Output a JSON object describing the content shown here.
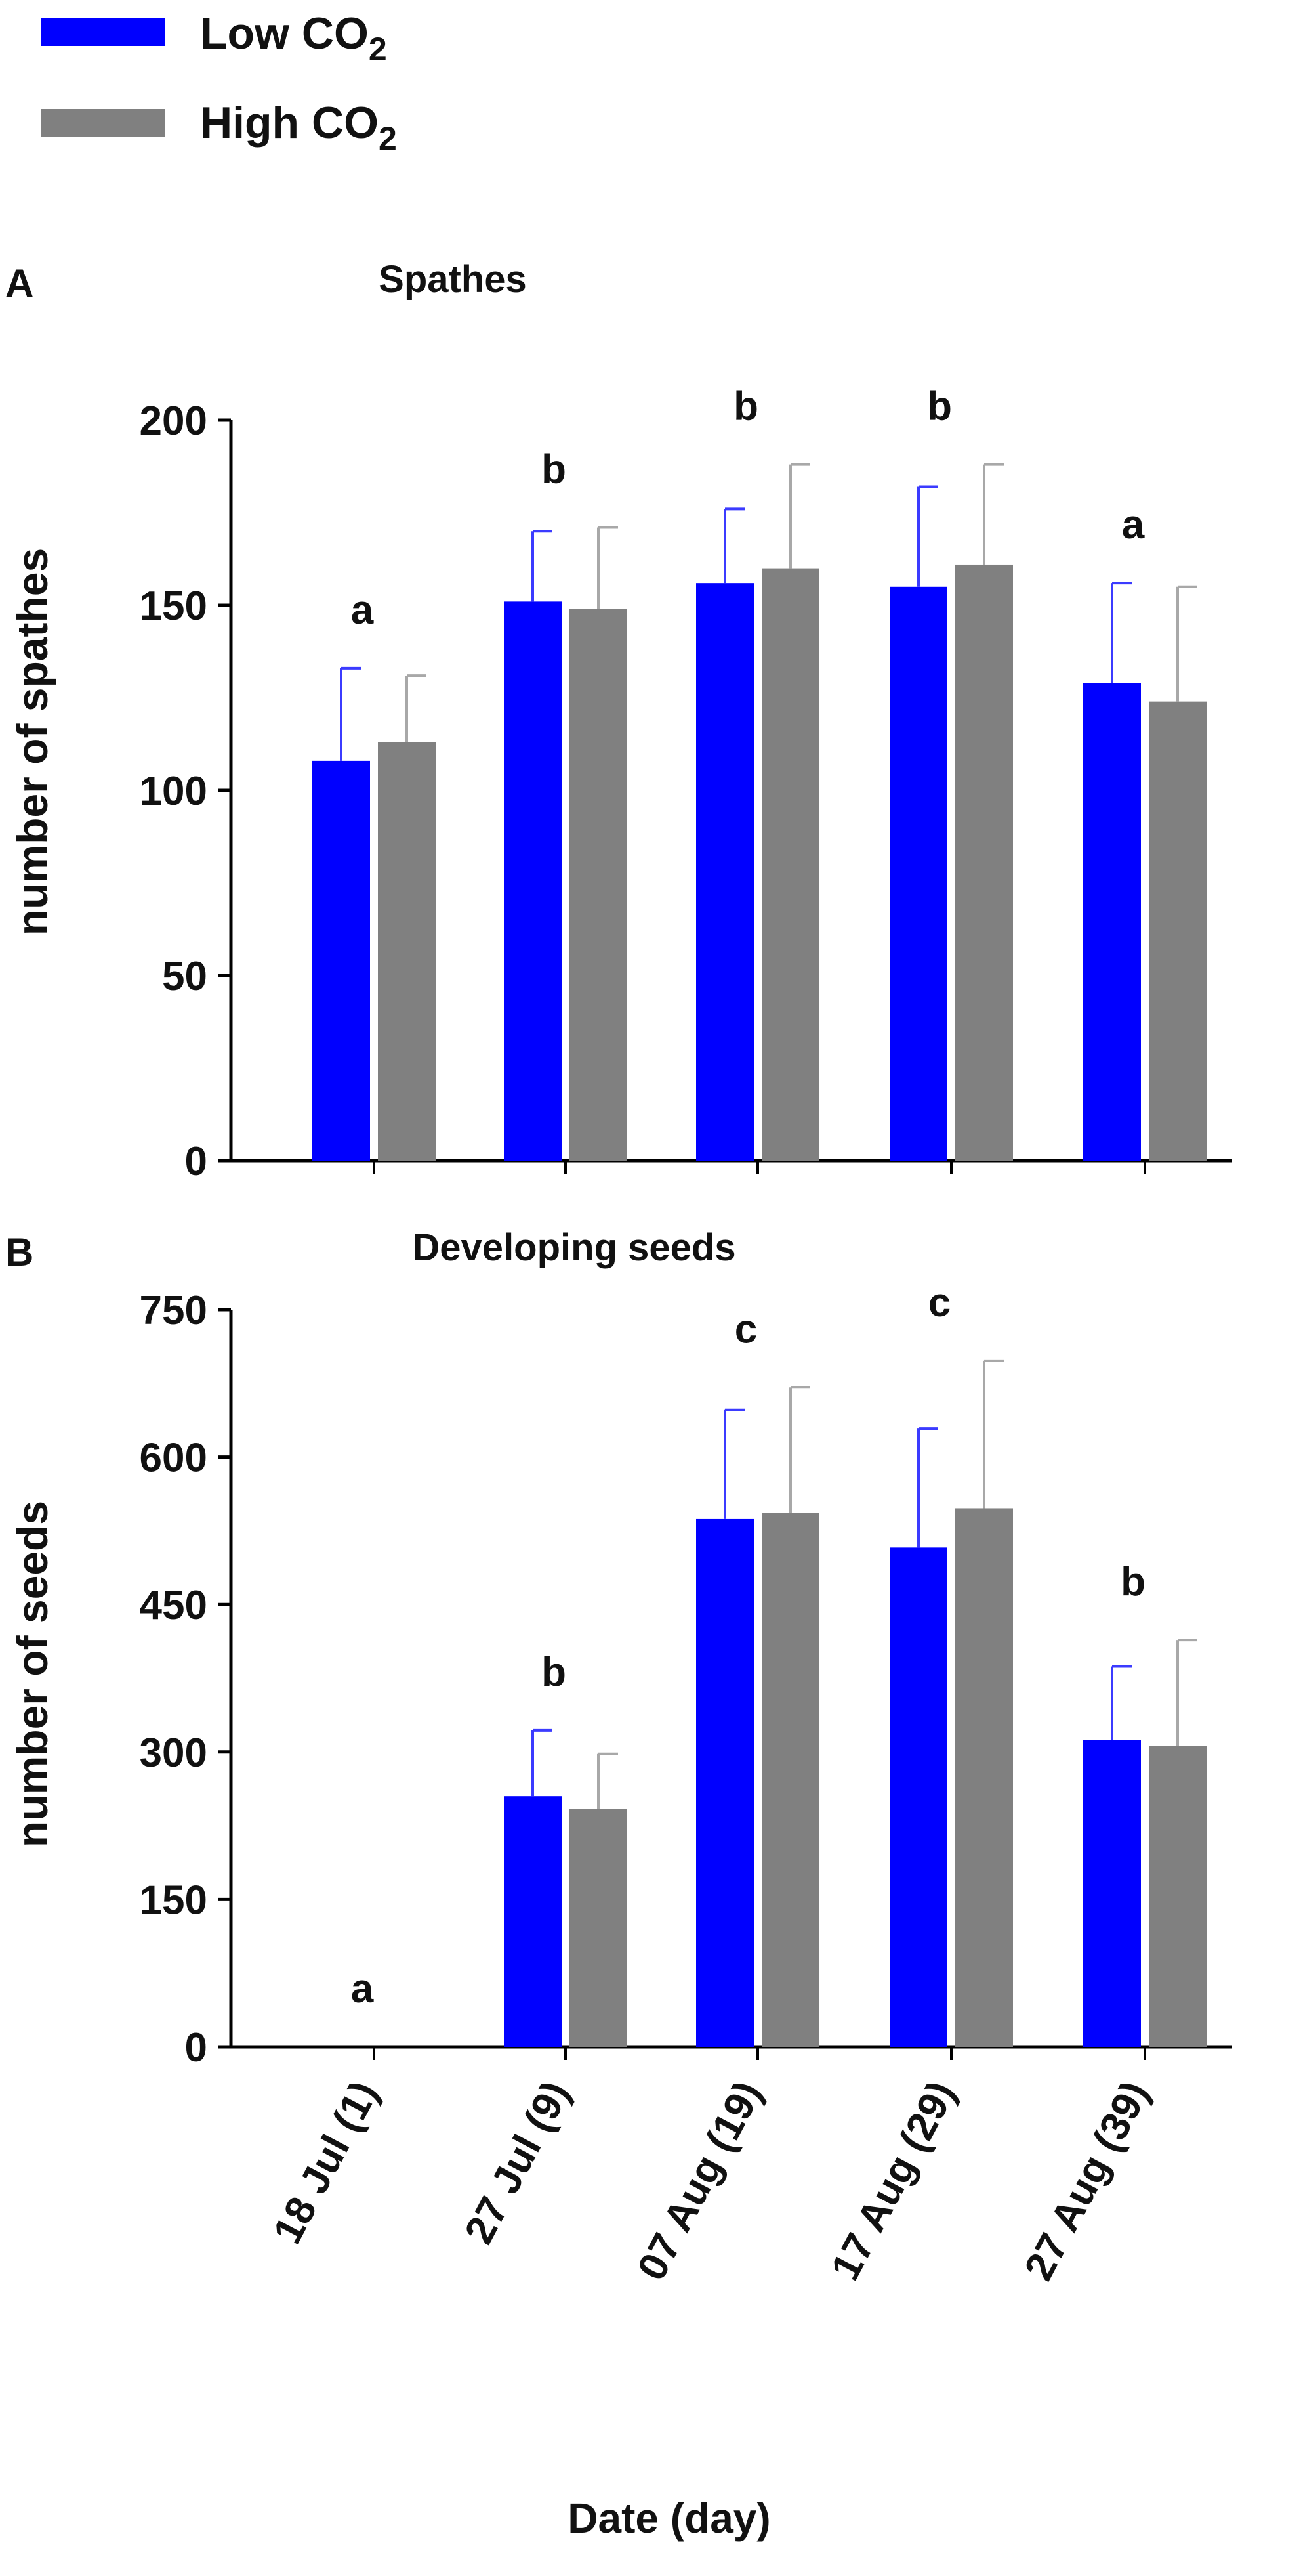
{
  "legend": {
    "items": [
      {
        "label": "Low CO",
        "sub": "2",
        "color": "#0000ff"
      },
      {
        "label": "High CO",
        "sub": "2",
        "color": "#808080"
      }
    ]
  },
  "categories": [
    "18 Jul (1)",
    "27 Jul (9)",
    "07 Aug (19)",
    "17 Aug  (29)",
    "27 Aug (39)"
  ],
  "xlabel": "Date (day)",
  "chart_data": [
    {
      "type": "bar",
      "panel": "A",
      "title": "Spathes",
      "ylabel": "number of spathes",
      "xlabel": "Date (day)",
      "ylim": [
        0,
        200
      ],
      "yticks": [
        0,
        50,
        100,
        150,
        200
      ],
      "categories": [
        "18 Jul (1)",
        "27 Jul (9)",
        "07 Aug (19)",
        "17 Aug  (29)",
        "27 Aug (39)"
      ],
      "series": [
        {
          "name": "Low CO2",
          "values": [
            108,
            151,
            156,
            155,
            129
          ],
          "errors": [
            25,
            19,
            20,
            27,
            27
          ]
        },
        {
          "name": "High CO2",
          "values": [
            113,
            149,
            160,
            161,
            124
          ],
          "errors": [
            18,
            22,
            28,
            27,
            31
          ]
        }
      ],
      "significance": [
        "a",
        "b",
        "b",
        "b",
        "a"
      ]
    },
    {
      "type": "bar",
      "panel": "B",
      "title": "Developing seeds",
      "ylabel": "number of seeds",
      "xlabel": "Date (day)",
      "ylim": [
        0,
        750
      ],
      "yticks": [
        0,
        150,
        300,
        450,
        600,
        750
      ],
      "categories": [
        "18 Jul (1)",
        "27 Jul (9)",
        "07 Aug (19)",
        "17 Aug  (29)",
        "27 Aug (39)"
      ],
      "series": [
        {
          "name": "Low CO2",
          "values": [
            0,
            255,
            537,
            508,
            312
          ],
          "errors": [
            0,
            67,
            111,
            121,
            75
          ]
        },
        {
          "name": "High CO2",
          "values": [
            0,
            242,
            543,
            548,
            306
          ],
          "errors": [
            0,
            56,
            128,
            150,
            108
          ]
        }
      ],
      "significance": [
        "a",
        "b",
        "c",
        "c",
        "b"
      ]
    }
  ]
}
